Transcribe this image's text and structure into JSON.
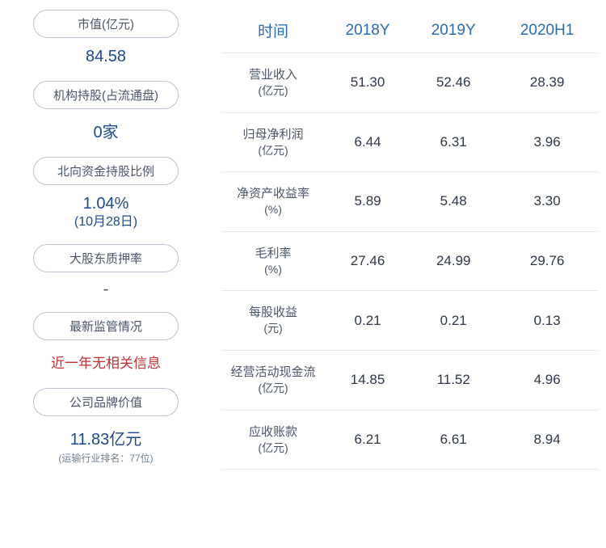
{
  "leftPanel": {
    "items": [
      {
        "label": "市值(亿元)",
        "value": "84.58",
        "valueColor": "#1e4a8c",
        "valueSize": "20px"
      },
      {
        "label": "机构持股(占流通盘)",
        "value": "0家",
        "valueColor": "#1e4a8c",
        "valueSize": "20px"
      },
      {
        "label": "北向资金持股比例",
        "value": "1.04%",
        "subValue": "(10月28日)",
        "valueColor": "#1e4a8c",
        "valueSize": "20px"
      },
      {
        "label": "大股东质押率",
        "value": "-",
        "valueColor": "#4a5568",
        "valueSize": "20px"
      },
      {
        "label": "最新监管情况",
        "value": "近一年无相关信息",
        "valueColor": "#c53030",
        "valueSize": "17px",
        "fontWeight": "500"
      },
      {
        "label": "公司品牌价值",
        "value": "11.83亿元",
        "valueColor": "#1e4a8c",
        "valueSize": "20px",
        "note": "(运输行业排名：77位)"
      }
    ]
  },
  "financialTable": {
    "headers": [
      "时间",
      "2018Y",
      "2019Y",
      "2020H1"
    ],
    "headerColor": "#2b6cb0",
    "headerFontSize": "19px",
    "cellFontSize": "17px",
    "cellColor": "#2d3748",
    "labelColor": "#4a5568",
    "labelFontSize": "15px",
    "borderColor": "#e2e8f0",
    "rows": [
      {
        "label": "营业收入",
        "unit": "(亿元)",
        "values": [
          "51.30",
          "52.46",
          "28.39"
        ]
      },
      {
        "label": "归母净利润",
        "unit": "(亿元)",
        "values": [
          "6.44",
          "6.31",
          "3.96"
        ]
      },
      {
        "label": "净资产收益率",
        "unit": "(%)",
        "values": [
          "5.89",
          "5.48",
          "3.30"
        ]
      },
      {
        "label": "毛利率",
        "unit": "(%)",
        "values": [
          "27.46",
          "24.99",
          "29.76"
        ]
      },
      {
        "label": "每股收益",
        "unit": "(元)",
        "values": [
          "0.21",
          "0.21",
          "0.13"
        ]
      },
      {
        "label": "经营活动现金流",
        "unit": "(亿元)",
        "values": [
          "14.85",
          "11.52",
          "4.96"
        ]
      },
      {
        "label": "应收账款",
        "unit": "(亿元)",
        "values": [
          "6.21",
          "6.61",
          "8.94"
        ]
      }
    ]
  }
}
